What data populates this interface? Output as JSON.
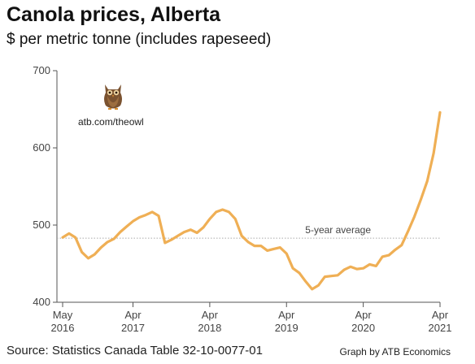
{
  "chart_data": {
    "type": "line",
    "title": "Canola prices, Alberta",
    "subtitle": "$ per metric tonne (includes rapeseed)",
    "ylim": [
      400,
      700
    ],
    "yticks": [
      "400",
      "500",
      "600",
      "700"
    ],
    "xticks": [
      {
        "month": "May",
        "year": "2016",
        "index": 0
      },
      {
        "month": "Apr",
        "year": "2017",
        "index": 11
      },
      {
        "month": "Apr",
        "year": "2018",
        "index": 23
      },
      {
        "month": "Apr",
        "year": "2019",
        "index": 35
      },
      {
        "month": "Apr",
        "year": "2020",
        "index": 47
      },
      {
        "month": "Apr",
        "year": "2021",
        "index": 59
      }
    ],
    "series": [
      {
        "name": "",
        "color": "#EFAF55",
        "x": [
          "2016-05",
          "2016-06",
          "2016-07",
          "2016-08",
          "2016-09",
          "2016-10",
          "2016-11",
          "2016-12",
          "2017-01",
          "2017-02",
          "2017-03",
          "2017-04",
          "2017-05",
          "2017-06",
          "2017-07",
          "2017-08",
          "2017-09",
          "2017-10",
          "2017-11",
          "2017-12",
          "2018-01",
          "2018-02",
          "2018-03",
          "2018-04",
          "2018-05",
          "2018-06",
          "2018-07",
          "2018-08",
          "2018-09",
          "2018-10",
          "2018-11",
          "2018-12",
          "2019-01",
          "2019-02",
          "2019-03",
          "2019-04",
          "2019-05",
          "2019-06",
          "2019-07",
          "2019-08",
          "2019-09",
          "2019-10",
          "2019-11",
          "2019-12",
          "2020-01",
          "2020-02",
          "2020-03",
          "2020-04",
          "2020-05",
          "2020-06",
          "2020-07",
          "2020-08",
          "2020-09",
          "2020-10",
          "2020-11",
          "2020-12",
          "2021-01",
          "2021-02",
          "2021-03",
          "2021-04"
        ],
        "values": [
          484,
          489,
          484,
          465,
          457,
          462,
          471,
          478,
          482,
          491,
          498,
          505,
          510,
          513,
          517,
          512,
          477,
          481,
          486,
          491,
          494,
          490,
          497,
          508,
          517,
          520,
          517,
          508,
          486,
          478,
          473,
          473,
          467,
          469,
          471,
          463,
          444,
          438,
          427,
          417,
          422,
          433,
          434,
          435,
          442,
          446,
          443,
          444,
          449,
          447,
          459,
          461,
          468,
          474,
          492,
          511,
          533,
          557,
          593,
          646
        ]
      }
    ],
    "reference_line": {
      "value": 483,
      "label": "5-year average",
      "color": "#AAAAAA"
    },
    "grid": false
  },
  "source": "Source: Statistics Canada Table 32-10-0077-01",
  "credit": "Graph by ATB Economics",
  "logo": {
    "icon": "owl-icon",
    "link_text": "atb.com/theowl"
  }
}
